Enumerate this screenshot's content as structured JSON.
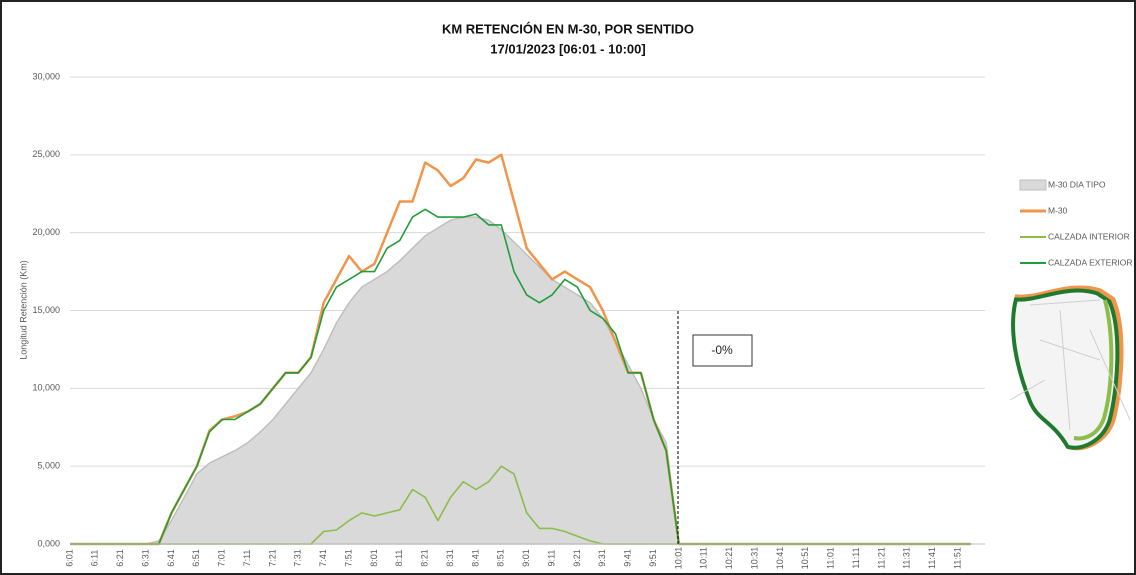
{
  "chart_data": {
    "type": "line",
    "title": "KM RETENCIÓN EN M-30, POR SENTIDO",
    "subtitle": "17/01/2023   [06:01 - 10:00]",
    "y_label": "Longitud Retención (Km)",
    "annotation": "-0%",
    "categories": [
      "6:01",
      null,
      "6:11",
      null,
      "6:21",
      null,
      "6:31",
      null,
      "6:41",
      null,
      "6:51",
      null,
      "7:01",
      null,
      "7:11",
      null,
      "7:21",
      null,
      "7:31",
      null,
      "7:41",
      null,
      "7:51",
      null,
      "8:01",
      null,
      "8:11",
      null,
      "8:21",
      null,
      "8:31",
      null,
      "8:41",
      null,
      "8:51",
      null,
      "9:01",
      null,
      "9:11",
      null,
      "9:21",
      null,
      "9:31",
      null,
      "9:41",
      null,
      "9:51",
      null,
      "10:01",
      null,
      "10:11",
      null,
      "10:21",
      null,
      "10:31",
      null,
      "10:41",
      null,
      "10:51",
      null,
      "11:01",
      null,
      "11:11",
      null,
      "11:21",
      null,
      "11:31",
      null,
      "11:41",
      null,
      "11:51",
      null
    ],
    "series": [
      {
        "name": "M-30 DIA TIPO",
        "color": "#bfbfbf",
        "fill": "#d9d9d9",
        "area": true,
        "values": [
          0,
          0,
          0,
          0,
          0,
          0,
          0,
          200,
          1500,
          3000,
          4500,
          5200,
          5600,
          6000,
          6500,
          7200,
          8000,
          9000,
          10000,
          11000,
          12500,
          14200,
          15500,
          16500,
          17000,
          17500,
          18200,
          19000,
          19800,
          20300,
          20800,
          21000,
          21000,
          20800,
          20200,
          19400,
          18600,
          17800,
          17000,
          16500,
          16000,
          15500,
          14500,
          13000,
          11500,
          10000,
          8000,
          6500,
          0,
          0,
          0,
          0,
          0,
          0,
          0,
          0,
          0,
          0,
          0,
          0,
          0,
          0,
          0,
          0,
          0,
          0,
          0,
          0,
          0,
          0,
          0,
          0
        ]
      },
      {
        "name": "M-30",
        "color": "#f0954a",
        "values": [
          0,
          0,
          0,
          0,
          0,
          0,
          0,
          0,
          2000,
          3500,
          5000,
          7300,
          8000,
          8200,
          8500,
          9000,
          10000,
          11000,
          11000,
          12000,
          15500,
          17000,
          18500,
          17500,
          18000,
          20000,
          22000,
          22000,
          24500,
          24000,
          23000,
          23500,
          24700,
          24500,
          25000,
          22000,
          19000,
          18000,
          17000,
          17500,
          17000,
          16500,
          15000,
          13000,
          11000,
          11000,
          8000,
          6000,
          0,
          0,
          0,
          0,
          0,
          0,
          0,
          0,
          0,
          0,
          0,
          0,
          0,
          0,
          0,
          0,
          0,
          0,
          0,
          0,
          0,
          0,
          0,
          0
        ]
      },
      {
        "name": "CALZADA INTERIOR",
        "color": "#8cbd4a",
        "values": [
          0,
          0,
          0,
          0,
          0,
          0,
          0,
          0,
          0,
          0,
          0,
          0,
          0,
          0,
          0,
          0,
          0,
          0,
          0,
          0,
          800,
          900,
          1500,
          2000,
          1800,
          2000,
          2200,
          3500,
          3000,
          1500,
          3000,
          4000,
          3500,
          4000,
          5000,
          4500,
          2000,
          1000,
          1000,
          800,
          500,
          200,
          0,
          0,
          0,
          0,
          0,
          0,
          0,
          0,
          0,
          0,
          0,
          0,
          0,
          0,
          0,
          0,
          0,
          0,
          0,
          0,
          0,
          0,
          0,
          0,
          0,
          0,
          0,
          0,
          0,
          0
        ]
      },
      {
        "name": "CALZADA EXTERIOR",
        "color": "#1f9e3a",
        "values": [
          0,
          0,
          0,
          0,
          0,
          0,
          0,
          0,
          2000,
          3500,
          5000,
          7200,
          8000,
          8000,
          8500,
          9000,
          10000,
          11000,
          11000,
          12000,
          15000,
          16500,
          17000,
          17500,
          17500,
          19000,
          19500,
          21000,
          21500,
          21000,
          21000,
          21000,
          21200,
          20500,
          20500,
          17500,
          16000,
          15500,
          16000,
          17000,
          16500,
          15000,
          14500,
          13500,
          11000,
          11000,
          8000,
          6000,
          0,
          0,
          0,
          0,
          0,
          0,
          0,
          0,
          0,
          0,
          0,
          0,
          0,
          0,
          0,
          0,
          0,
          0,
          0,
          0,
          0,
          0,
          0,
          0
        ]
      }
    ],
    "ylim": [
      0,
      30000
    ],
    "yticks": [
      {
        "value": 0,
        "label": "0,000"
      },
      {
        "value": 5000,
        "label": "5,000"
      },
      {
        "value": 10000,
        "label": "10,000"
      },
      {
        "value": 15000,
        "label": "15,000"
      },
      {
        "value": 20000,
        "label": "20,000"
      },
      {
        "value": 25000,
        "label": "25,000"
      },
      {
        "value": 30000,
        "label": "30,000"
      }
    ],
    "grid": true,
    "legend": "right"
  }
}
